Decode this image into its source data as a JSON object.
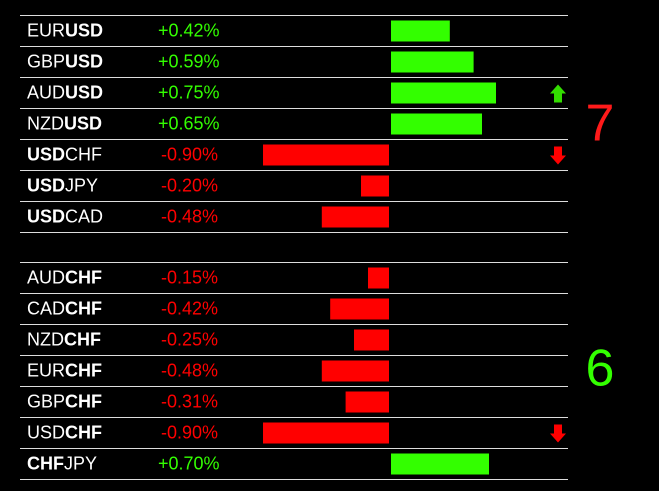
{
  "groups": [
    {
      "score": 7,
      "score_color": "#ff1a1a",
      "rows": [
        {
          "pair": [
            "EUR",
            "USD"
          ],
          "bold": 1,
          "value": 0.42,
          "value_label": "+0.42%",
          "arrow": null
        },
        {
          "pair": [
            "GBP",
            "USD"
          ],
          "bold": 1,
          "value": 0.59,
          "value_label": "+0.59%",
          "arrow": null
        },
        {
          "pair": [
            "AUD",
            "USD"
          ],
          "bold": 1,
          "value": 0.75,
          "value_label": "+0.75%",
          "arrow": "up"
        },
        {
          "pair": [
            "NZD",
            "USD"
          ],
          "bold": 1,
          "value": 0.65,
          "value_label": "+0.65%",
          "arrow": null
        },
        {
          "pair": [
            "USD",
            "CHF"
          ],
          "bold": 0,
          "value": -0.9,
          "value_label": "-0.90%",
          "arrow": "down"
        },
        {
          "pair": [
            "USD",
            "JPY"
          ],
          "bold": 0,
          "value": -0.2,
          "value_label": "-0.20%",
          "arrow": null
        },
        {
          "pair": [
            "USD",
            "CAD"
          ],
          "bold": 0,
          "value": -0.48,
          "value_label": "-0.48%",
          "arrow": null
        }
      ]
    },
    {
      "score": 6,
      "score_color": "#33ff00",
      "rows": [
        {
          "pair": [
            "AUD",
            "CHF"
          ],
          "bold": 1,
          "value": -0.15,
          "value_label": "-0.15%",
          "arrow": null
        },
        {
          "pair": [
            "CAD",
            "CHF"
          ],
          "bold": 1,
          "value": -0.42,
          "value_label": "-0.42%",
          "arrow": null
        },
        {
          "pair": [
            "NZD",
            "CHF"
          ],
          "bold": 1,
          "value": -0.25,
          "value_label": "-0.25%",
          "arrow": null
        },
        {
          "pair": [
            "EUR",
            "CHF"
          ],
          "bold": 1,
          "value": -0.48,
          "value_label": "-0.48%",
          "arrow": null
        },
        {
          "pair": [
            "GBP",
            "CHF"
          ],
          "bold": 1,
          "value": -0.31,
          "value_label": "-0.31%",
          "arrow": null
        },
        {
          "pair": [
            "USD",
            "CHF"
          ],
          "bold": 1,
          "value": -0.9,
          "value_label": "-0.90%",
          "arrow": "down"
        },
        {
          "pair": [
            "CHF",
            "JPY"
          ],
          "bold": 0,
          "value": 0.7,
          "value_label": "+0.70%",
          "arrow": null
        }
      ]
    }
  ]
}
